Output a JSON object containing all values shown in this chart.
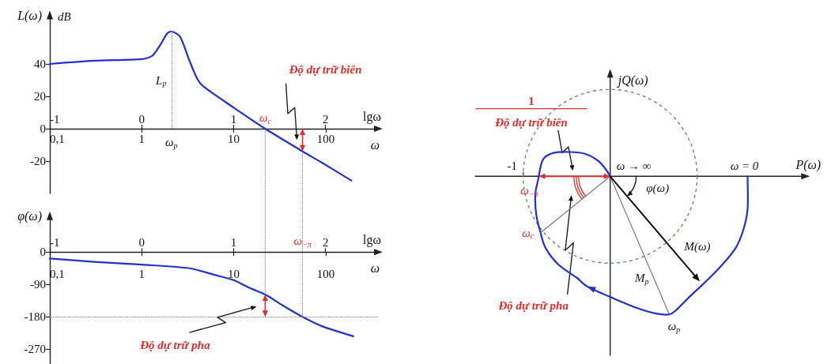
{
  "chart_data": [
    {
      "type": "line",
      "xlabel": "ω",
      "x2label": "lgω",
      "ylabel": "L(ω)",
      "log": "x",
      "marker": "none",
      "line_style": "solid",
      "xlim": [
        0.1,
        370
      ],
      "xticks": [
        {
          "value": 0.1,
          "label": "0,1"
        },
        1,
        10,
        100
      ],
      "x2lim": [
        -1,
        2.57
      ],
      "x2ticks": [
        -1,
        0,
        1,
        2
      ],
      "ylim": [
        -40,
        70
      ],
      "yticks": [
        -20,
        0,
        20,
        40
      ],
      "series": [
        {
          "color": "#2330d0",
          "x": [
            0.1,
            0.3,
            1,
            1.3,
            1.6,
            1.9,
            2.1,
            2.6,
            3.3,
            4,
            4.7,
            10,
            22,
            56,
            91,
            190
          ],
          "values": [
            40,
            42,
            43,
            45,
            52,
            59,
            60,
            57,
            42,
            31,
            26,
            13,
            0,
            -14,
            -21,
            -32
          ]
        }
      ],
      "ref_lines": [
        {
          "axis": "x",
          "value": 2.1,
          "label": "L$_{p}$",
          "color": "#777777",
          "line_style": "dotted"
        },
        {
          "axis": "x",
          "value": 22,
          "color": "#777777",
          "line_style": "dotted"
        },
        {
          "axis": "x",
          "value": 56,
          "color": "#777777",
          "line_style": "dotted"
        }
      ],
      "annotations": [
        "Độ dự trữ biên",
        {
          "text": "ω$_{c}$",
          "x": 22,
          "y": 0
        },
        {
          "text": "ω$_{p}$",
          "x": 2.1,
          "y": 0
        },
        "dB"
      ]
    },
    {
      "type": "line",
      "xlabel": "ω",
      "x2label": "lgω",
      "ylabel": "φ(ω)",
      "log": "x",
      "marker": "none",
      "line_style": "solid",
      "xlim": [
        0.1,
        370
      ],
      "xticks": [
        {
          "value": 0.1,
          "label": "0,1"
        },
        1,
        10,
        100
      ],
      "x2lim": [
        -1,
        2.57
      ],
      "x2ticks": [
        -1,
        0,
        1,
        2
      ],
      "ylim": [
        -310,
        100
      ],
      "yticks": [
        -270,
        -180,
        -90,
        0
      ],
      "series": [
        {
          "color": "#2330d0",
          "x": [
            0.1,
            0.3,
            1,
            3.3,
            6.3,
            10,
            15,
            22,
            34,
            56,
            91,
            200
          ],
          "values": [
            -18,
            -27,
            -35,
            -45,
            -64,
            -78,
            -100,
            -118,
            -148,
            -180,
            -206,
            -234
          ]
        }
      ],
      "ref_lines": [
        {
          "axis": "y",
          "value": -180,
          "color": "#777777",
          "line_style": "dotted"
        },
        {
          "axis": "x",
          "value": 22,
          "color": "#777777",
          "line_style": "dotted"
        },
        {
          "axis": "x",
          "value": 56,
          "color": "#777777",
          "line_style": "dotted"
        }
      ],
      "annotations": [
        "Độ dự trữ pha",
        {
          "text": "ω$_{−π}$",
          "x": 56,
          "y": 0
        }
      ]
    },
    {
      "type": "other",
      "xlabel": "P(ω)",
      "ylabel": "jQ(ω)",
      "annotations": [
        "ω = 0",
        "ω → ∞",
        "ω$_{−π}$",
        "ω$_{c}$",
        "ω$_{p}$",
        "M(ω)",
        "φ(ω)",
        "M$_{p}$",
        "1",
        "Độ dự trữ biên",
        "Độ dự trữ pha",
        "-1"
      ]
    }
  ]
}
